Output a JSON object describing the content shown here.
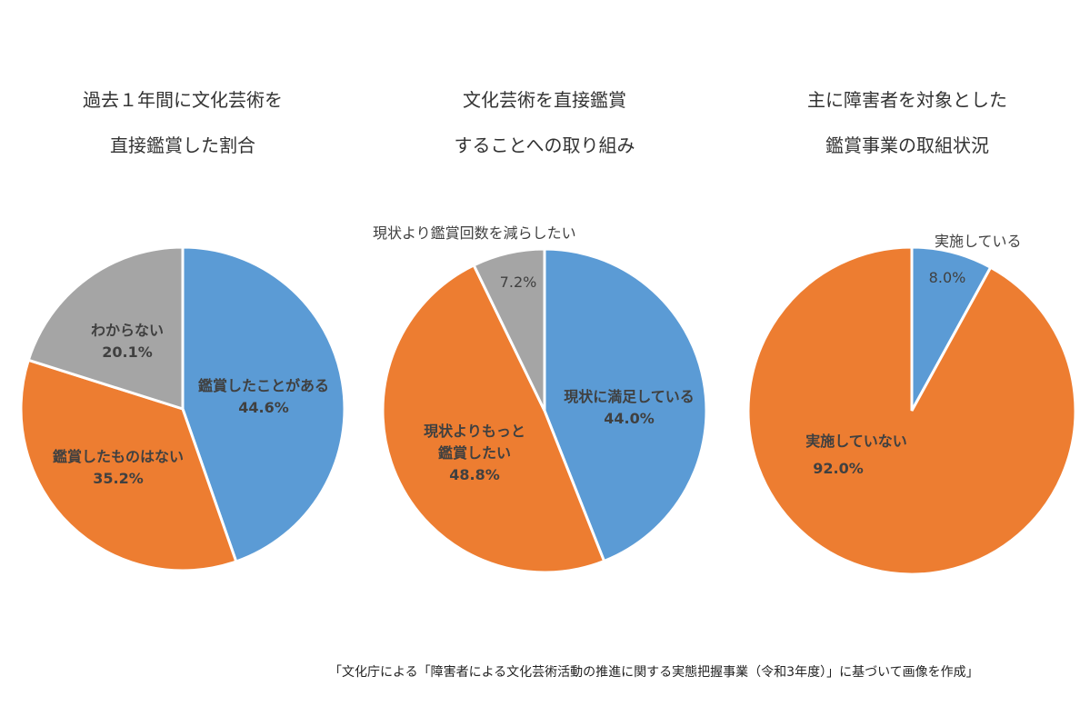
{
  "colors": {
    "blue": "#5b9bd5",
    "orange": "#ed7d31",
    "gray": "#a5a5a5"
  },
  "chart_data": [
    {
      "type": "pie",
      "title_lines": [
        "過去１年間に文化芸術を",
        "直接鑑賞した割合"
      ],
      "slices": [
        {
          "label": "鑑賞したことがある",
          "value": 44.6,
          "value_label": "44.6%",
          "color": "#5b9bd5"
        },
        {
          "label": "鑑賞したものはない",
          "value": 35.2,
          "value_label": "35.2%",
          "color": "#ed7d31"
        },
        {
          "label": "わからない",
          "value": 20.1,
          "value_label": "20.1%",
          "color": "#a5a5a5"
        }
      ]
    },
    {
      "type": "pie",
      "title_lines": [
        "文化芸術を直接鑑賞",
        "することへの取り組み"
      ],
      "slices": [
        {
          "label": "現状に満足している",
          "value": 44.0,
          "value_label": "44.0%",
          "color": "#5b9bd5"
        },
        {
          "label": "現状よりもっと鑑賞したい",
          "label_lines": [
            "現状よりもっと",
            "鑑賞したい"
          ],
          "value": 48.8,
          "value_label": "48.8%",
          "color": "#ed7d31"
        },
        {
          "label": "現状より鑑賞回数を減らしたい",
          "value": 7.2,
          "value_label": "7.2%",
          "color": "#a5a5a5"
        }
      ]
    },
    {
      "type": "pie",
      "title_lines": [
        "主に障害者を対象とした",
        "鑑賞事業の取組状況"
      ],
      "slices": [
        {
          "label": "実施している",
          "value": 8.0,
          "value_label": "8.0%",
          "color": "#5b9bd5"
        },
        {
          "label": "実施していない",
          "value": 92.0,
          "value_label": "92.0%",
          "color": "#ed7d31"
        }
      ]
    }
  ],
  "source": "「文化庁による「障害者による文化芸術活動の推進に関する実態把握事業（令和3年度）」に基づいて画像を作成」"
}
